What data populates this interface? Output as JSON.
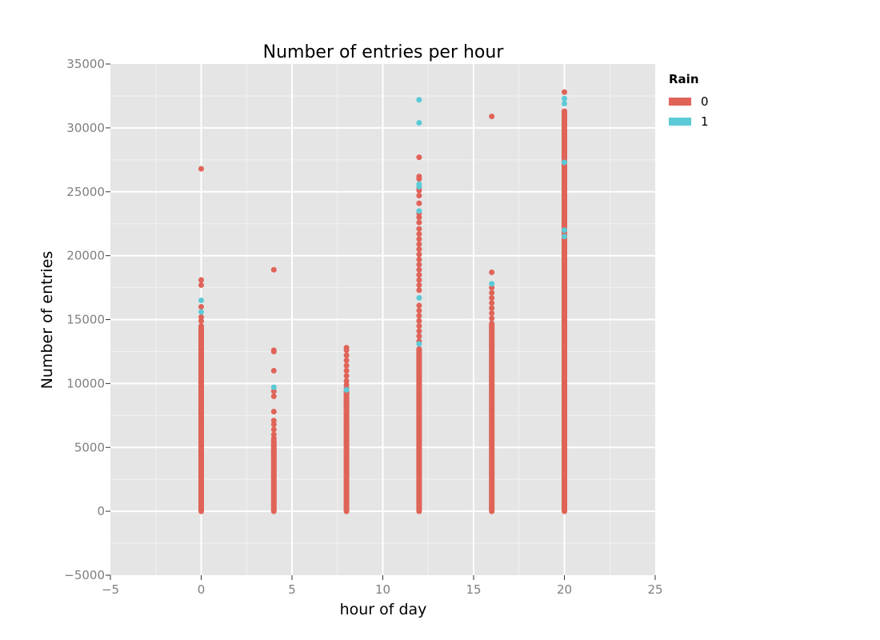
{
  "chart_data": {
    "type": "scatter",
    "title": "Number of entries per hour",
    "xlabel": "hour of day",
    "ylabel": "Number of entries",
    "xlim": [
      -5,
      25
    ],
    "ylim": [
      -5000,
      35000
    ],
    "x_ticks": [
      -5,
      0,
      5,
      10,
      15,
      20,
      25
    ],
    "y_ticks": [
      -5000,
      0,
      5000,
      10000,
      15000,
      20000,
      25000,
      30000,
      35000
    ],
    "x_tick_labels": [
      "−5",
      "0",
      "5",
      "10",
      "15",
      "20",
      "25"
    ],
    "y_tick_labels": [
      "−5000",
      "0",
      "5000",
      "10000",
      "15000",
      "20000",
      "25000",
      "30000",
      "35000"
    ],
    "grid": true,
    "background": "#e5e5e5",
    "legend": {
      "title": "Rain",
      "placement": "right",
      "entries": [
        {
          "label": "0",
          "color": "#e06358"
        },
        {
          "label": "1",
          "color": "#5bcad6"
        }
      ]
    },
    "series": [
      {
        "name": "0",
        "color": "#e06358",
        "columns": [
          {
            "x": 0,
            "range": [
              0,
              14500
            ]
          },
          {
            "x": 4,
            "range": [
              0,
              5500
            ]
          },
          {
            "x": 8,
            "range": [
              0,
              9400
            ]
          },
          {
            "x": 12,
            "range": [
              0,
              12700
            ]
          },
          {
            "x": 16,
            "range": [
              0,
              14700
            ]
          },
          {
            "x": 20,
            "range": [
              0,
              31300
            ]
          }
        ],
        "points": [
          {
            "x": 0,
            "y": 26800
          },
          {
            "x": 0,
            "y": 18100
          },
          {
            "x": 0,
            "y": 17700
          },
          {
            "x": 0,
            "y": 16000
          },
          {
            "x": 0,
            "y": 15200
          },
          {
            "x": 0,
            "y": 14900
          },
          {
            "x": 0,
            "y": 14200
          },
          {
            "x": 0,
            "y": 13500
          },
          {
            "x": 0,
            "y": 12800
          },
          {
            "x": 0,
            "y": 12100
          },
          {
            "x": 0,
            "y": 11300
          },
          {
            "x": 0,
            "y": 10500
          },
          {
            "x": 0,
            "y": 9800
          },
          {
            "x": 0,
            "y": 9200
          },
          {
            "x": 4,
            "y": 18900
          },
          {
            "x": 4,
            "y": 12600
          },
          {
            "x": 4,
            "y": 12500
          },
          {
            "x": 4,
            "y": 11000
          },
          {
            "x": 4,
            "y": 9400
          },
          {
            "x": 4,
            "y": 9000
          },
          {
            "x": 4,
            "y": 7800
          },
          {
            "x": 4,
            "y": 7100
          },
          {
            "x": 4,
            "y": 6800
          },
          {
            "x": 4,
            "y": 6400
          },
          {
            "x": 4,
            "y": 6000
          },
          {
            "x": 4,
            "y": 5700
          },
          {
            "x": 8,
            "y": 12800
          },
          {
            "x": 8,
            "y": 12600
          },
          {
            "x": 8,
            "y": 12200
          },
          {
            "x": 8,
            "y": 11800
          },
          {
            "x": 8,
            "y": 11400
          },
          {
            "x": 8,
            "y": 11000
          },
          {
            "x": 8,
            "y": 10600
          },
          {
            "x": 8,
            "y": 10200
          },
          {
            "x": 8,
            "y": 9900
          },
          {
            "x": 8,
            "y": 9600
          },
          {
            "x": 8,
            "y": 9300
          },
          {
            "x": 8,
            "y": 8600
          },
          {
            "x": 8,
            "y": 8200
          },
          {
            "x": 8,
            "y": 7600
          },
          {
            "x": 8,
            "y": 7100
          },
          {
            "x": 8,
            "y": 6600
          },
          {
            "x": 8,
            "y": 6300
          },
          {
            "x": 12,
            "y": 27700
          },
          {
            "x": 12,
            "y": 26200
          },
          {
            "x": 12,
            "y": 26000
          },
          {
            "x": 12,
            "y": 25300
          },
          {
            "x": 12,
            "y": 25100
          },
          {
            "x": 12,
            "y": 24700
          },
          {
            "x": 12,
            "y": 24100
          },
          {
            "x": 12,
            "y": 23300
          },
          {
            "x": 12,
            "y": 23000
          },
          {
            "x": 12,
            "y": 22600
          },
          {
            "x": 12,
            "y": 22100
          },
          {
            "x": 12,
            "y": 21700
          },
          {
            "x": 12,
            "y": 21300
          },
          {
            "x": 12,
            "y": 20900
          },
          {
            "x": 12,
            "y": 20500
          },
          {
            "x": 12,
            "y": 20100
          },
          {
            "x": 12,
            "y": 19700
          },
          {
            "x": 12,
            "y": 19300
          },
          {
            "x": 12,
            "y": 18900
          },
          {
            "x": 12,
            "y": 18500
          },
          {
            "x": 12,
            "y": 18100
          },
          {
            "x": 12,
            "y": 17700
          },
          {
            "x": 12,
            "y": 17300
          },
          {
            "x": 12,
            "y": 16100
          },
          {
            "x": 12,
            "y": 15700
          },
          {
            "x": 12,
            "y": 15300
          },
          {
            "x": 12,
            "y": 14900
          },
          {
            "x": 12,
            "y": 14500
          },
          {
            "x": 12,
            "y": 14100
          },
          {
            "x": 12,
            "y": 13700
          },
          {
            "x": 12,
            "y": 13300
          },
          {
            "x": 16,
            "y": 30900
          },
          {
            "x": 16,
            "y": 18700
          },
          {
            "x": 16,
            "y": 17500
          },
          {
            "x": 16,
            "y": 17100
          },
          {
            "x": 16,
            "y": 16700
          },
          {
            "x": 16,
            "y": 16300
          },
          {
            "x": 16,
            "y": 15900
          },
          {
            "x": 16,
            "y": 15500
          },
          {
            "x": 16,
            "y": 15100
          },
          {
            "x": 20,
            "y": 32800
          },
          {
            "x": 20,
            "y": 31300
          },
          {
            "x": 20,
            "y": 31000
          },
          {
            "x": 20,
            "y": 30600
          },
          {
            "x": 20,
            "y": 30200
          },
          {
            "x": 20,
            "y": 29800
          },
          {
            "x": 20,
            "y": 29400
          },
          {
            "x": 20,
            "y": 29000
          },
          {
            "x": 20,
            "y": 28600
          },
          {
            "x": 20,
            "y": 28200
          },
          {
            "x": 20,
            "y": 27800
          },
          {
            "x": 20,
            "y": 27200
          },
          {
            "x": 20,
            "y": 26800
          },
          {
            "x": 20,
            "y": 26400
          },
          {
            "x": 20,
            "y": 26000
          },
          {
            "x": 20,
            "y": 25600
          },
          {
            "x": 20,
            "y": 25200
          },
          {
            "x": 20,
            "y": 24800
          },
          {
            "x": 20,
            "y": 24400
          },
          {
            "x": 20,
            "y": 24000
          },
          {
            "x": 20,
            "y": 23600
          },
          {
            "x": 20,
            "y": 23200
          },
          {
            "x": 20,
            "y": 22800
          },
          {
            "x": 20,
            "y": 22400
          },
          {
            "x": 20,
            "y": 21600
          },
          {
            "x": 20,
            "y": 21200
          },
          {
            "x": 20,
            "y": 20800
          },
          {
            "x": 20,
            "y": 20400
          },
          {
            "x": 20,
            "y": 20000
          },
          {
            "x": 20,
            "y": 19600
          },
          {
            "x": 20,
            "y": 19200
          },
          {
            "x": 20,
            "y": 18800
          },
          {
            "x": 20,
            "y": 18400
          },
          {
            "x": 20,
            "y": 18000
          },
          {
            "x": 20,
            "y": 17600
          },
          {
            "x": 20,
            "y": 17200
          },
          {
            "x": 20,
            "y": 16800
          },
          {
            "x": 20,
            "y": 16400
          },
          {
            "x": 20,
            "y": 16000
          },
          {
            "x": 20,
            "y": 15600
          },
          {
            "x": 20,
            "y": 15200
          },
          {
            "x": 20,
            "y": 14800
          }
        ]
      },
      {
        "name": "1",
        "color": "#5bcad6",
        "points": [
          {
            "x": 0,
            "y": 16500
          },
          {
            "x": 0,
            "y": 15600
          },
          {
            "x": 4,
            "y": 9700
          },
          {
            "x": 8,
            "y": 9500
          },
          {
            "x": 12,
            "y": 32200
          },
          {
            "x": 12,
            "y": 30400
          },
          {
            "x": 12,
            "y": 25600
          },
          {
            "x": 12,
            "y": 25400
          },
          {
            "x": 12,
            "y": 23500
          },
          {
            "x": 12,
            "y": 16700
          },
          {
            "x": 12,
            "y": 13100
          },
          {
            "x": 16,
            "y": 17800
          },
          {
            "x": 20,
            "y": 32300
          },
          {
            "x": 20,
            "y": 31900
          },
          {
            "x": 20,
            "y": 27300
          },
          {
            "x": 20,
            "y": 22000
          },
          {
            "x": 20,
            "y": 21500
          }
        ]
      }
    ]
  }
}
